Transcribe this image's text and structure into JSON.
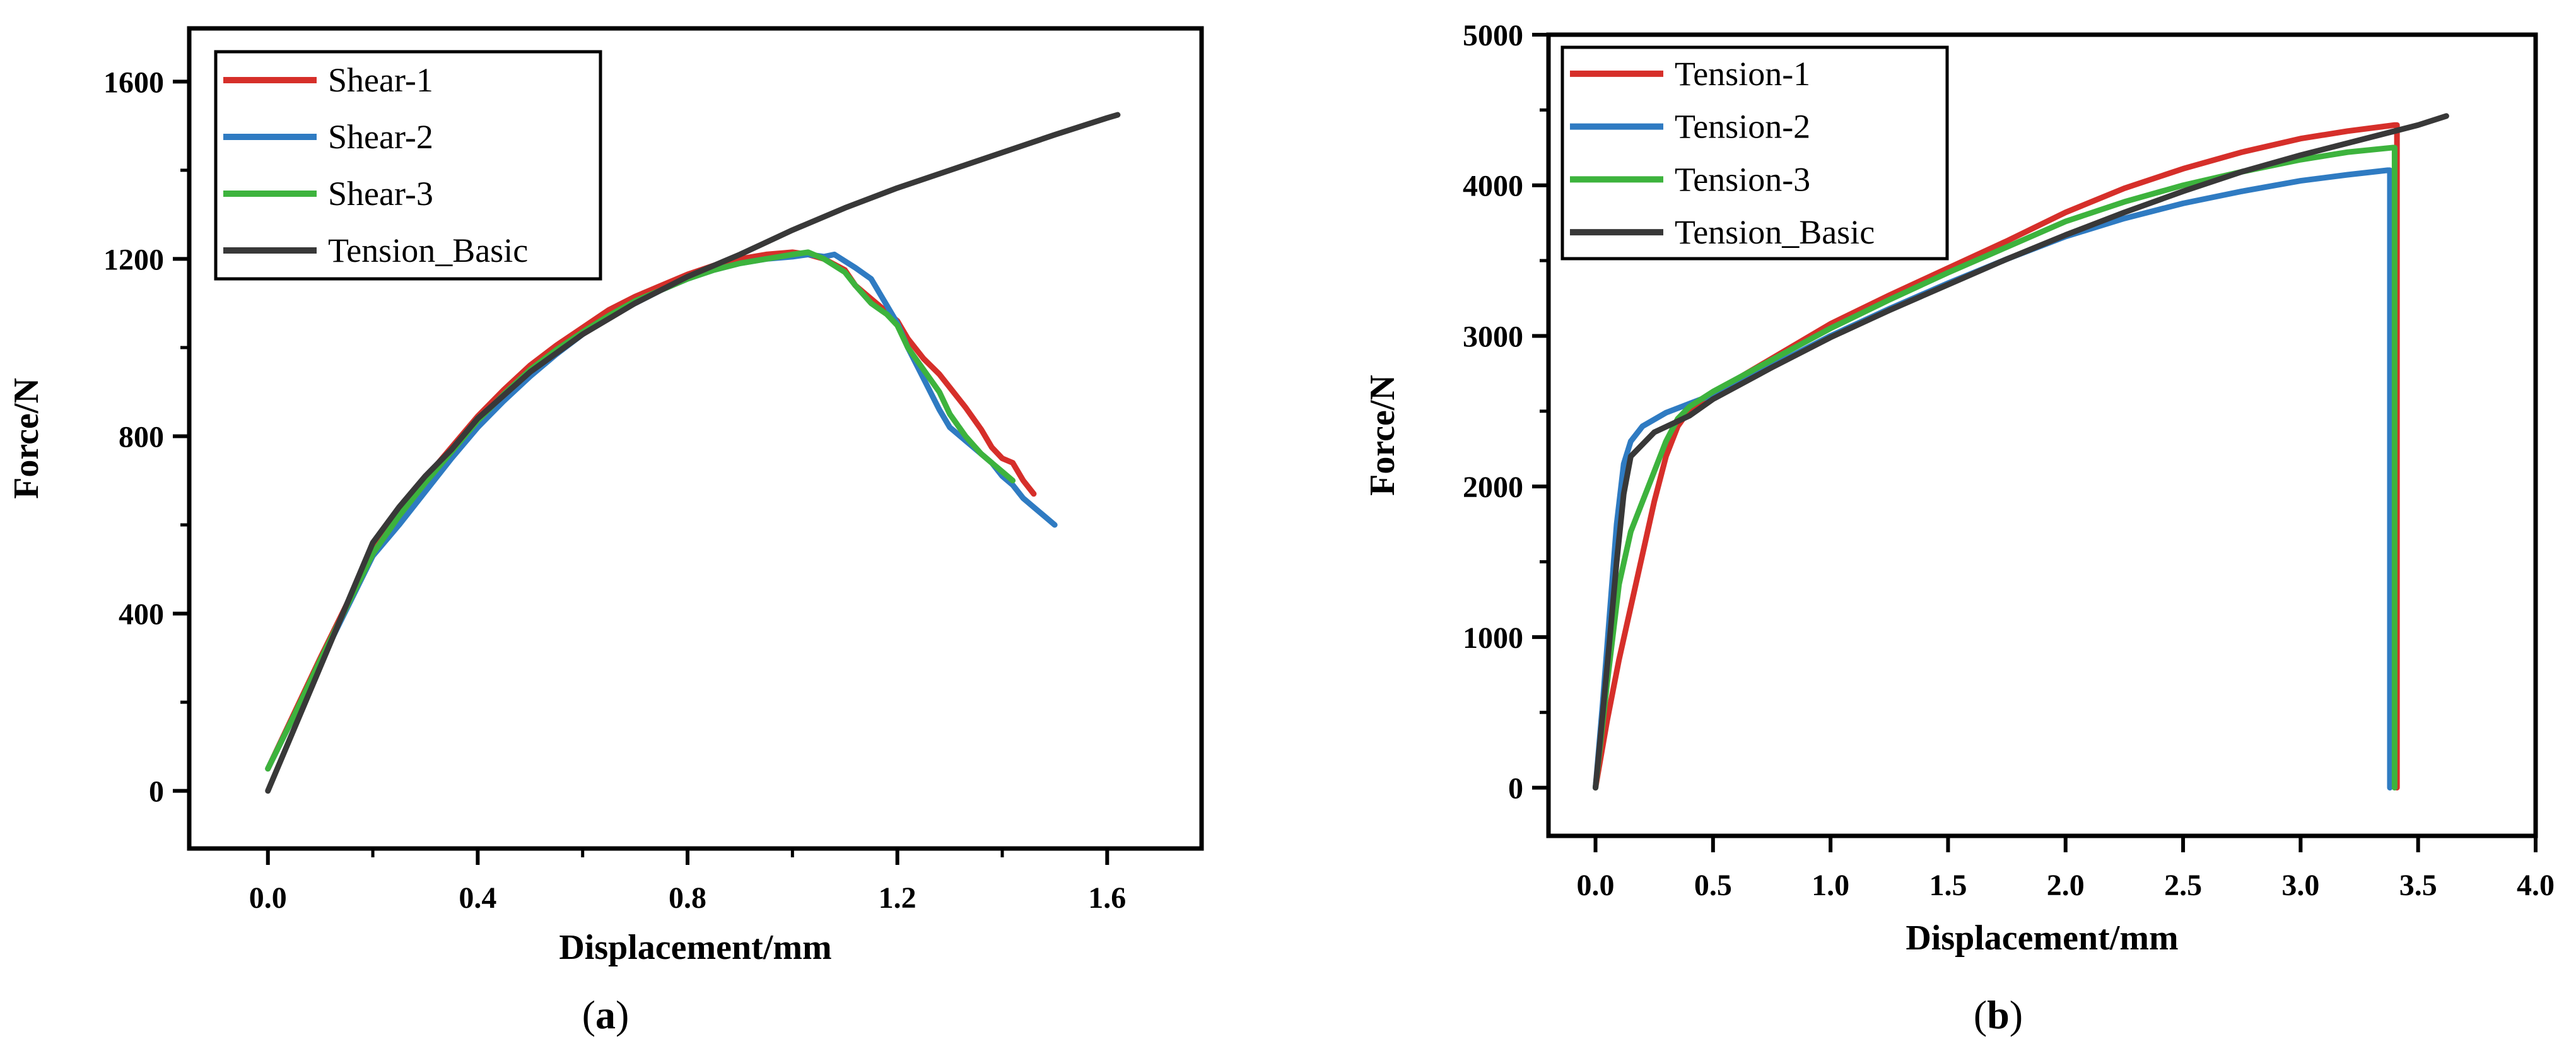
{
  "chart_data": [
    {
      "type": "line",
      "caption_letter": "a",
      "xlabel": "Displacement/mm",
      "ylabel": "Force/N",
      "xlim": [
        -0.15,
        1.78
      ],
      "ylim": [
        -130,
        1720
      ],
      "xticks": [
        0.0,
        0.4,
        0.8,
        1.2,
        1.6
      ],
      "xtick_labels": [
        "0.0",
        "0.4",
        "0.8",
        "1.2",
        "1.6"
      ],
      "xminor": [
        0.2,
        0.6,
        1.0,
        1.4
      ],
      "yticks": [
        0,
        400,
        800,
        1200,
        1600
      ],
      "ytick_labels": [
        "0",
        "400",
        "800",
        "1200",
        "1600"
      ],
      "yminor": [
        200,
        600,
        1000,
        1400
      ],
      "legend_position": "top-left",
      "series": [
        {
          "name": "Shear-1",
          "color": "#d62f2a",
          "points": [
            [
              0,
              50
            ],
            [
              0.05,
              175
            ],
            [
              0.1,
              300
            ],
            [
              0.15,
              420
            ],
            [
              0.2,
              540
            ],
            [
              0.25,
              630
            ],
            [
              0.3,
              705
            ],
            [
              0.35,
              775
            ],
            [
              0.4,
              845
            ],
            [
              0.45,
              905
            ],
            [
              0.5,
              960
            ],
            [
              0.55,
              1005
            ],
            [
              0.6,
              1045
            ],
            [
              0.65,
              1085
            ],
            [
              0.7,
              1115
            ],
            [
              0.75,
              1140
            ],
            [
              0.8,
              1165
            ],
            [
              0.85,
              1185
            ],
            [
              0.9,
              1200
            ],
            [
              0.95,
              1210
            ],
            [
              1.0,
              1215
            ],
            [
              1.03,
              1210
            ],
            [
              1.06,
              1200
            ],
            [
              1.1,
              1175
            ],
            [
              1.12,
              1140
            ],
            [
              1.15,
              1110
            ],
            [
              1.18,
              1080
            ],
            [
              1.2,
              1060
            ],
            [
              1.22,
              1020
            ],
            [
              1.25,
              975
            ],
            [
              1.28,
              940
            ],
            [
              1.3,
              910
            ],
            [
              1.33,
              865
            ],
            [
              1.36,
              815
            ],
            [
              1.38,
              775
            ],
            [
              1.4,
              750
            ],
            [
              1.42,
              740
            ],
            [
              1.44,
              700
            ],
            [
              1.46,
              670
            ]
          ]
        },
        {
          "name": "Shear-2",
          "color": "#2f7bc2",
          "points": [
            [
              0,
              50
            ],
            [
              0.05,
              170
            ],
            [
              0.1,
              290
            ],
            [
              0.15,
              410
            ],
            [
              0.2,
              530
            ],
            [
              0.25,
              600
            ],
            [
              0.3,
              675
            ],
            [
              0.35,
              750
            ],
            [
              0.4,
              820
            ],
            [
              0.45,
              880
            ],
            [
              0.5,
              935
            ],
            [
              0.55,
              985
            ],
            [
              0.6,
              1030
            ],
            [
              0.65,
              1070
            ],
            [
              0.7,
              1100
            ],
            [
              0.75,
              1130
            ],
            [
              0.8,
              1155
            ],
            [
              0.85,
              1175
            ],
            [
              0.9,
              1190
            ],
            [
              0.95,
              1200
            ],
            [
              1.0,
              1205
            ],
            [
              1.03,
              1210
            ],
            [
              1.06,
              1205
            ],
            [
              1.08,
              1210
            ],
            [
              1.1,
              1195
            ],
            [
              1.12,
              1180
            ],
            [
              1.15,
              1155
            ],
            [
              1.16,
              1135
            ],
            [
              1.18,
              1095
            ],
            [
              1.2,
              1055
            ],
            [
              1.22,
              1000
            ],
            [
              1.25,
              930
            ],
            [
              1.28,
              860
            ],
            [
              1.3,
              820
            ],
            [
              1.33,
              790
            ],
            [
              1.36,
              760
            ],
            [
              1.38,
              740
            ],
            [
              1.4,
              710
            ],
            [
              1.42,
              690
            ],
            [
              1.44,
              660
            ],
            [
              1.46,
              640
            ],
            [
              1.48,
              620
            ],
            [
              1.5,
              600
            ]
          ]
        },
        {
          "name": "Shear-3",
          "color": "#3db33d",
          "points": [
            [
              0,
              50
            ],
            [
              0.05,
              170
            ],
            [
              0.1,
              295
            ],
            [
              0.15,
              415
            ],
            [
              0.2,
              535
            ],
            [
              0.25,
              620
            ],
            [
              0.3,
              695
            ],
            [
              0.35,
              765
            ],
            [
              0.4,
              835
            ],
            [
              0.45,
              895
            ],
            [
              0.5,
              950
            ],
            [
              0.55,
              995
            ],
            [
              0.6,
              1035
            ],
            [
              0.65,
              1072
            ],
            [
              0.7,
              1105
            ],
            [
              0.75,
              1130
            ],
            [
              0.8,
              1155
            ],
            [
              0.85,
              1175
            ],
            [
              0.9,
              1190
            ],
            [
              0.95,
              1200
            ],
            [
              1.0,
              1210
            ],
            [
              1.03,
              1215
            ],
            [
              1.06,
              1200
            ],
            [
              1.1,
              1170
            ],
            [
              1.12,
              1140
            ],
            [
              1.15,
              1100
            ],
            [
              1.18,
              1075
            ],
            [
              1.2,
              1050
            ],
            [
              1.22,
              1000
            ],
            [
              1.25,
              950
            ],
            [
              1.28,
              900
            ],
            [
              1.3,
              850
            ],
            [
              1.33,
              800
            ],
            [
              1.36,
              760
            ],
            [
              1.38,
              740
            ],
            [
              1.4,
              720
            ],
            [
              1.42,
              700
            ]
          ]
        },
        {
          "name": "Tension_Basic",
          "color": "#383838",
          "points": [
            [
              0,
              0
            ],
            [
              0.05,
              140
            ],
            [
              0.1,
              280
            ],
            [
              0.15,
              420
            ],
            [
              0.2,
              560
            ],
            [
              0.25,
              640
            ],
            [
              0.3,
              710
            ],
            [
              0.35,
              770
            ],
            [
              0.4,
              840
            ],
            [
              0.5,
              945
            ],
            [
              0.6,
              1030
            ],
            [
              0.7,
              1100
            ],
            [
              0.8,
              1160
            ],
            [
              0.9,
              1210
            ],
            [
              1.0,
              1265
            ],
            [
              1.1,
              1315
            ],
            [
              1.2,
              1360
            ],
            [
              1.3,
              1400
            ],
            [
              1.4,
              1440
            ],
            [
              1.5,
              1480
            ],
            [
              1.6,
              1518
            ],
            [
              1.62,
              1525
            ]
          ]
        }
      ]
    },
    {
      "type": "line",
      "caption_letter": "b",
      "xlabel": "Displacement/mm",
      "ylabel": "Force/N",
      "xlim": [
        -0.2,
        4.0
      ],
      "ylim": [
        -320,
        5000
      ],
      "xticks": [
        0.0,
        0.5,
        1.0,
        1.5,
        2.0,
        2.5,
        3.0,
        3.5,
        4.0
      ],
      "xtick_labels": [
        "0.0",
        "0.5",
        "1.0",
        "1.5",
        "2.0",
        "2.5",
        "3.0",
        "3.5",
        "4.0"
      ],
      "xminor": [],
      "yticks": [
        0,
        1000,
        2000,
        3000,
        4000,
        5000
      ],
      "ytick_labels": [
        "0",
        "1000",
        "2000",
        "3000",
        "4000",
        "5000"
      ],
      "yminor": [
        500,
        1500,
        2500,
        3500,
        4500
      ],
      "legend_position": "top-left",
      "series": [
        {
          "name": "Tension-1",
          "color": "#d62f2a",
          "points": [
            [
              0,
              0
            ],
            [
              0.05,
              450
            ],
            [
              0.1,
              850
            ],
            [
              0.15,
              1200
            ],
            [
              0.2,
              1550
            ],
            [
              0.25,
              1900
            ],
            [
              0.3,
              2200
            ],
            [
              0.35,
              2400
            ],
            [
              0.4,
              2510
            ],
            [
              0.5,
              2620
            ],
            [
              0.75,
              2850
            ],
            [
              1.0,
              3080
            ],
            [
              1.25,
              3270
            ],
            [
              1.5,
              3450
            ],
            [
              1.75,
              3630
            ],
            [
              2.0,
              3820
            ],
            [
              2.25,
              3980
            ],
            [
              2.5,
              4110
            ],
            [
              2.75,
              4220
            ],
            [
              3.0,
              4310
            ],
            [
              3.2,
              4360
            ],
            [
              3.4,
              4400
            ],
            [
              3.41,
              4400
            ],
            [
              3.41,
              0
            ]
          ]
        },
        {
          "name": "Tension-2",
          "color": "#2f7bc2",
          "points": [
            [
              0,
              0
            ],
            [
              0.03,
              550
            ],
            [
              0.06,
              1150
            ],
            [
              0.09,
              1750
            ],
            [
              0.12,
              2150
            ],
            [
              0.15,
              2300
            ],
            [
              0.2,
              2400
            ],
            [
              0.3,
              2490
            ],
            [
              0.4,
              2550
            ],
            [
              0.5,
              2610
            ],
            [
              0.75,
              2800
            ],
            [
              1.0,
              3000
            ],
            [
              1.25,
              3180
            ],
            [
              1.5,
              3350
            ],
            [
              1.75,
              3510
            ],
            [
              2.0,
              3660
            ],
            [
              2.25,
              3780
            ],
            [
              2.5,
              3880
            ],
            [
              2.75,
              3960
            ],
            [
              3.0,
              4030
            ],
            [
              3.2,
              4070
            ],
            [
              3.37,
              4100
            ],
            [
              3.38,
              4100
            ],
            [
              3.38,
              0
            ]
          ]
        },
        {
          "name": "Tension-3",
          "color": "#3db33d",
          "points": [
            [
              0,
              0
            ],
            [
              0.05,
              700
            ],
            [
              0.1,
              1350
            ],
            [
              0.15,
              1700
            ],
            [
              0.2,
              1900
            ],
            [
              0.25,
              2100
            ],
            [
              0.3,
              2300
            ],
            [
              0.35,
              2450
            ],
            [
              0.4,
              2530
            ],
            [
              0.5,
              2630
            ],
            [
              0.75,
              2840
            ],
            [
              1.0,
              3050
            ],
            [
              1.25,
              3240
            ],
            [
              1.5,
              3420
            ],
            [
              1.75,
              3590
            ],
            [
              2.0,
              3760
            ],
            [
              2.25,
              3890
            ],
            [
              2.5,
              4000
            ],
            [
              2.75,
              4090
            ],
            [
              3.0,
              4170
            ],
            [
              3.2,
              4220
            ],
            [
              3.39,
              4250
            ],
            [
              3.4,
              4250
            ],
            [
              3.4,
              0
            ]
          ]
        },
        {
          "name": "Tension_Basic",
          "color": "#383838",
          "points": [
            [
              0,
              0
            ],
            [
              0.03,
              480
            ],
            [
              0.06,
              980
            ],
            [
              0.09,
              1500
            ],
            [
              0.12,
              1950
            ],
            [
              0.15,
              2200
            ],
            [
              0.25,
              2360
            ],
            [
              0.4,
              2470
            ],
            [
              0.5,
              2580
            ],
            [
              0.75,
              2790
            ],
            [
              1.0,
              2990
            ],
            [
              1.25,
              3170
            ],
            [
              1.5,
              3340
            ],
            [
              1.75,
              3510
            ],
            [
              2.0,
              3670
            ],
            [
              2.25,
              3820
            ],
            [
              2.5,
              3960
            ],
            [
              2.75,
              4090
            ],
            [
              3.0,
              4200
            ],
            [
              3.25,
              4300
            ],
            [
              3.5,
              4400
            ],
            [
              3.62,
              4460
            ]
          ]
        }
      ]
    }
  ]
}
